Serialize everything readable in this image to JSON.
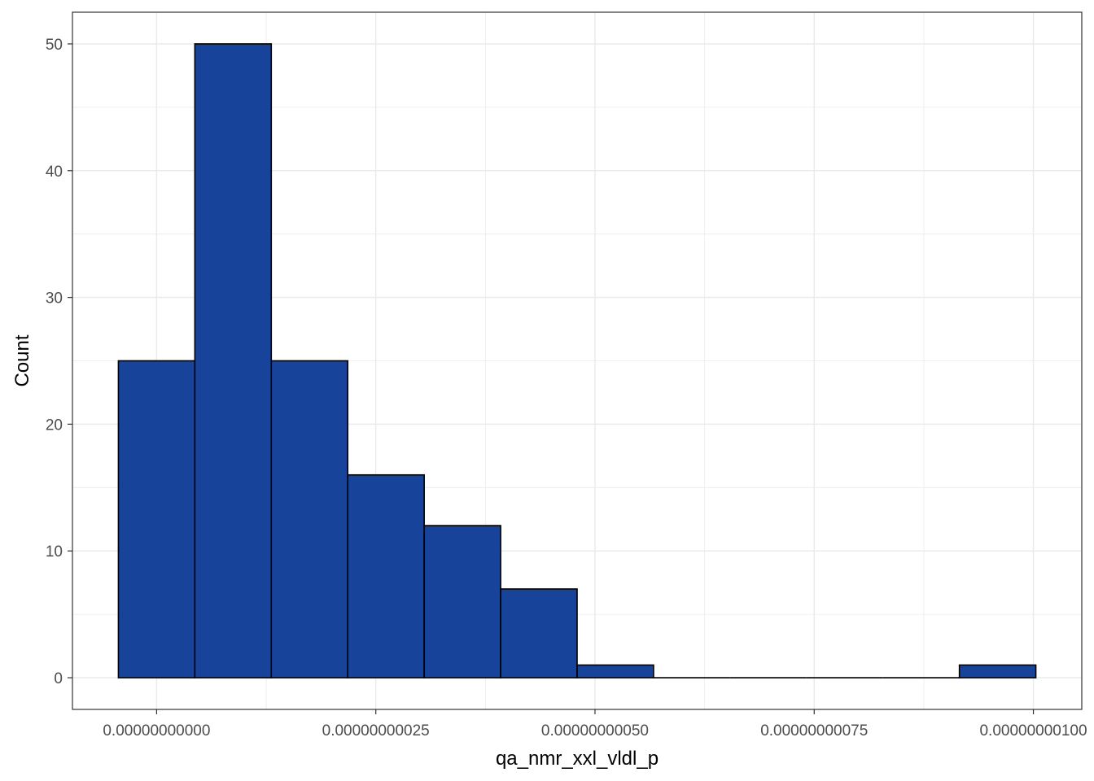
{
  "chart_data": {
    "type": "bar",
    "subtype": "histogram",
    "title": "",
    "xlabel": "qa_nmr_xxl_vldl_p",
    "ylabel": "Count",
    "bin_width": 8.72e-11,
    "bins": [
      {
        "x_start": -4.36e-11,
        "x_end": 4.36e-11,
        "count": 25
      },
      {
        "x_start": 4.36e-11,
        "x_end": 1.308e-10,
        "count": 50
      },
      {
        "x_start": 1.308e-10,
        "x_end": 2.18e-10,
        "count": 25
      },
      {
        "x_start": 2.18e-10,
        "x_end": 3.052e-10,
        "count": 16
      },
      {
        "x_start": 3.052e-10,
        "x_end": 3.924e-10,
        "count": 12
      },
      {
        "x_start": 3.924e-10,
        "x_end": 4.796e-10,
        "count": 7
      },
      {
        "x_start": 4.796e-10,
        "x_end": 5.668e-10,
        "count": 1
      },
      {
        "x_start": 5.668e-10,
        "x_end": 6.54e-10,
        "count": 0
      },
      {
        "x_start": 6.54e-10,
        "x_end": 7.412e-10,
        "count": 0
      },
      {
        "x_start": 7.412e-10,
        "x_end": 8.284e-10,
        "count": 0
      },
      {
        "x_start": 8.284e-10,
        "x_end": 9.156e-10,
        "count": 0
      },
      {
        "x_start": 9.156e-10,
        "x_end": 1.0028e-09,
        "count": 1
      }
    ],
    "x_ticks": [
      {
        "value": 0,
        "label": "0.00000000000"
      },
      {
        "value": 2.5e-10,
        "label": "0.00000000025"
      },
      {
        "value": 5e-10,
        "label": "0.00000000050"
      },
      {
        "value": 7.5e-10,
        "label": "0.00000000075"
      },
      {
        "value": 1e-09,
        "label": "0.00000000100"
      }
    ],
    "y_ticks": [
      0,
      10,
      20,
      30,
      40,
      50
    ],
    "xlim": [
      -9.6e-11,
      1.0552e-09
    ],
    "ylim": [
      -2.5,
      52.5
    ],
    "grid": true,
    "legend": "none",
    "colors": {
      "fill": "#17439b",
      "outline": "#000000",
      "grid": "#ebebeb",
      "panel_border": "#333333",
      "tick_text": "#4d4d4d"
    }
  }
}
